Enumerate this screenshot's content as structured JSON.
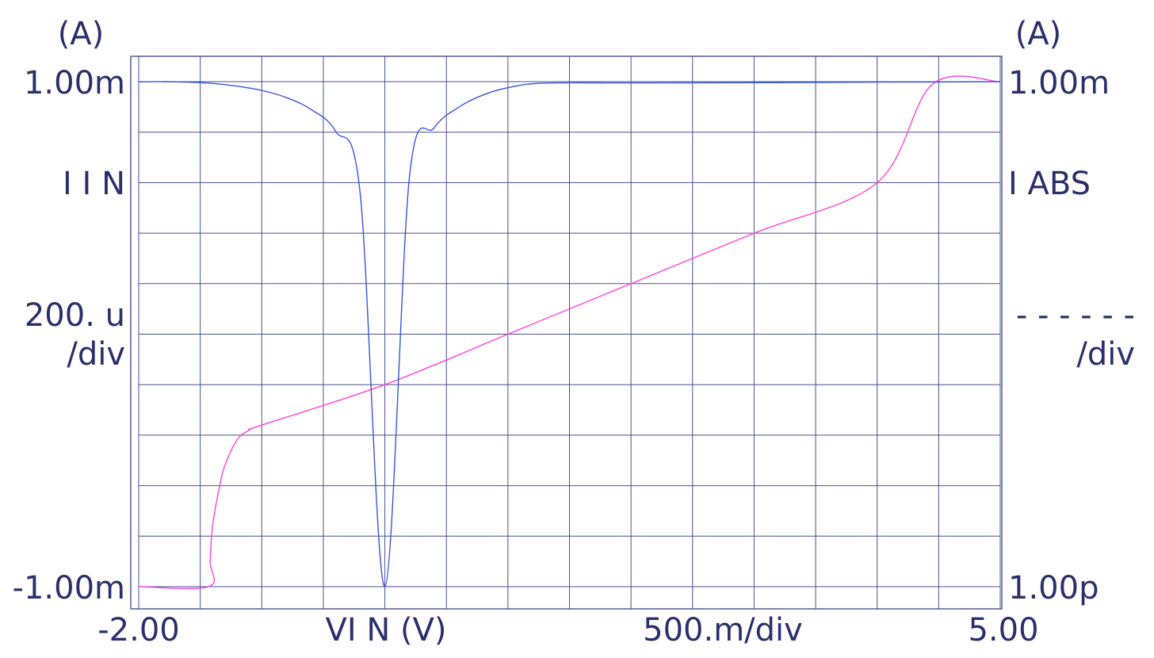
{
  "chart_data": {
    "type": "line",
    "left_axis": {
      "unit": "(A)",
      "top": "1.00m",
      "name": "I I N",
      "scale_value": "200. u",
      "scale_div": "/div",
      "bottom": "-1.00m",
      "range": [
        -0.001,
        0.001
      ]
    },
    "right_axis": {
      "unit": "(A)",
      "top": "1.00m",
      "name": "I ABS",
      "scale_value": "- - - - - -",
      "scale_div": "/div",
      "bottom": "1.00p",
      "scale": "log",
      "range": [
        1e-12,
        0.001
      ]
    },
    "x_axis": {
      "left": "-2.00",
      "name": "VI N (V)",
      "scale": "500.m/div",
      "right": "5.00",
      "range": [
        -2,
        5
      ]
    },
    "grid": true,
    "series": [
      {
        "axis": "left",
        "color": "#ff44dd",
        "x": [
          -2.0,
          -1.43,
          -1.42,
          -1.4,
          -1.35,
          -1.3,
          -1.2,
          -1.1,
          -1.0,
          0.0,
          1.0,
          2.0,
          3.0,
          4.0,
          4.45,
          5.0
        ],
        "y": [
          -0.001,
          -0.001,
          -0.0009,
          -0.00076,
          -0.00062,
          -0.00052,
          -0.000418,
          -0.00038,
          -0.00036,
          -0.0002,
          0.0,
          0.0002,
          0.0004,
          0.0006,
          0.00099,
          0.001
        ]
      },
      {
        "axis": "right",
        "color": "#3a55dd",
        "x": [
          -2.0,
          -1.8,
          -1.6,
          -1.4,
          -1.2,
          -1.0,
          -0.8,
          -0.6,
          -0.4,
          -0.2,
          0.0,
          0.2,
          0.4,
          0.6,
          0.8,
          1.0,
          1.28,
          2.0,
          3.0,
          4.0,
          5.0
        ],
        "y": [
          0.00099,
          0.001,
          0.00098,
          0.00093,
          0.00083,
          0.0007,
          0.00052,
          0.00032,
          0.00013,
          1e-05,
          1e-12,
          2e-05,
          0.00015,
          0.00035,
          0.00058,
          0.00078,
          0.00094,
          0.00095,
          0.00096,
          0.00098,
          0.001
        ]
      }
    ]
  }
}
